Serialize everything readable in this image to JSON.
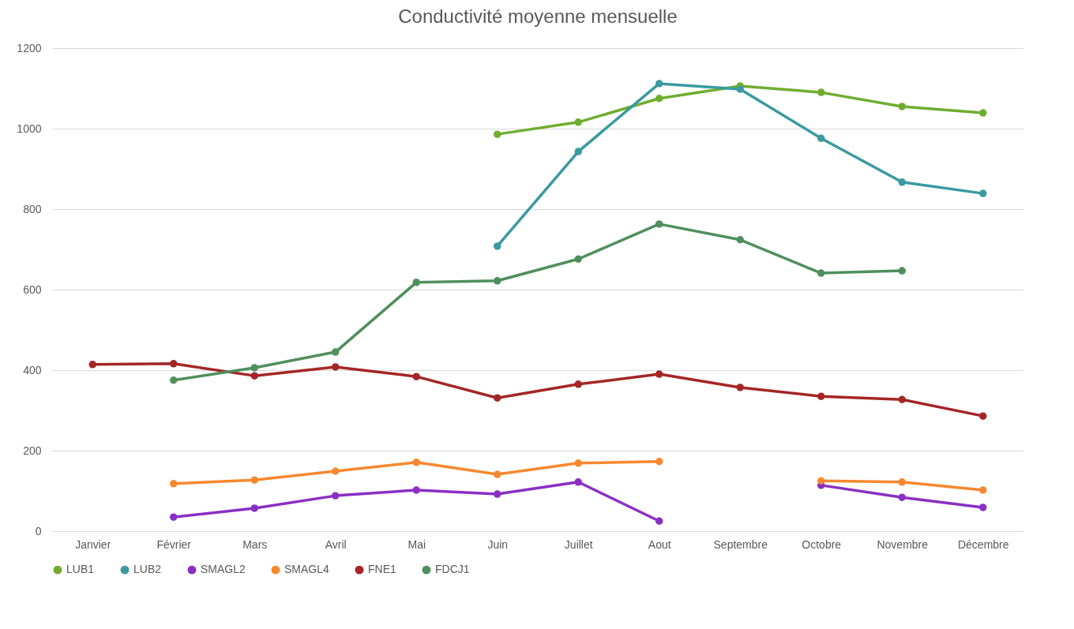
{
  "chart_data": {
    "type": "line",
    "title": "Conductivité moyenne mensuelle",
    "categories": [
      "Janvier",
      "Février",
      "Mars",
      "Avril",
      "Mai",
      "Juin",
      "Juillet",
      "Aout",
      "Septembre",
      "Octobre",
      "Novembre",
      "Décembre"
    ],
    "series": [
      {
        "name": "LUB1",
        "color": "#70ad2f",
        "values": [
          null,
          null,
          null,
          null,
          null,
          986,
          1016,
          1075,
          1106,
          1090,
          1055,
          1039
        ]
      },
      {
        "name": "LUB2",
        "color": "#3a9aa0",
        "values": [
          null,
          null,
          null,
          null,
          null,
          708,
          943,
          1112,
          1098,
          976,
          867,
          839
        ]
      },
      {
        "name": "SMAGL2",
        "color": "#8a2fc4",
        "values": [
          null,
          35,
          57,
          88,
          102,
          92,
          122,
          25,
          null,
          114,
          84,
          59
        ]
      },
      {
        "name": "SMAGL4",
        "color": "#f7882f",
        "values": [
          null,
          118,
          127,
          149,
          171,
          141,
          169,
          173,
          null,
          125,
          122,
          102
        ]
      },
      {
        "name": "FNE1",
        "color": "#a52626",
        "values": [
          414,
          416,
          386,
          408,
          384,
          331,
          365,
          390,
          357,
          335,
          327,
          286
        ]
      },
      {
        "name": "FDCJ1",
        "color": "#4f8f5d",
        "values": [
          null,
          375,
          406,
          445,
          618,
          622,
          676,
          763,
          724,
          641,
          647,
          null
        ]
      }
    ],
    "ylim": [
      0,
      1200
    ],
    "yticks": [
      0,
      200,
      400,
      600,
      800,
      1000,
      1200
    ],
    "grid": "y",
    "legend": "bottom",
    "marker": "circle",
    "line_style": "solid"
  }
}
